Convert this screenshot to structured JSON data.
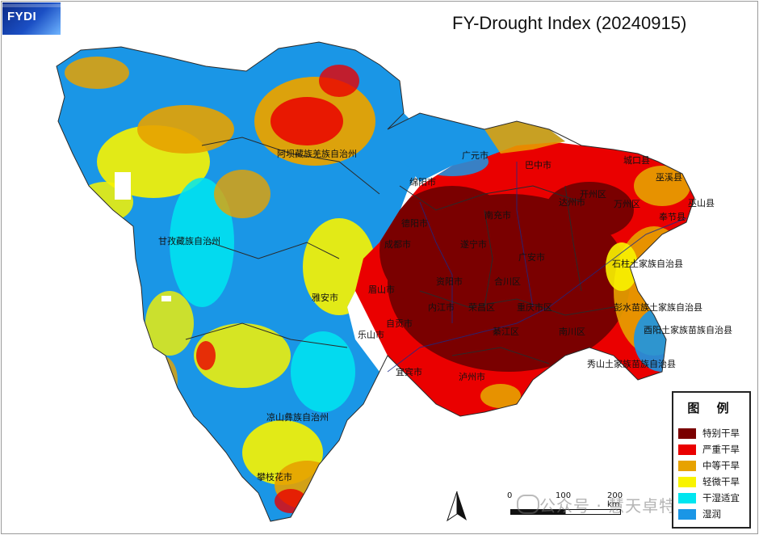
{
  "logo": {
    "text": "FYDI"
  },
  "title": "FY-Drought Index (20240915)",
  "colors": {
    "extreme": "#7a0000",
    "severe": "#ea0000",
    "moderate": "#e7a200",
    "light": "#f8f300",
    "suitable": "#00e6f0",
    "wet": "#1a96e6",
    "boundary": "#2a2a2a",
    "river": "#1a2a8a"
  },
  "places": [
    "阿坝藏族羌族自治州",
    "广元市",
    "巴中市",
    "绵阳市",
    "城口县",
    "巫溪县",
    "巫山县",
    "甘孜藏族自治州",
    "万州区",
    "开州区",
    "奉节县",
    "达州市",
    "德阳市",
    "遂宁市",
    "南充市",
    "资阳市",
    "眉山市",
    "成都市",
    "广安市",
    "雅安市",
    "内江市",
    "石柱土家族自治县",
    "乐山市",
    "自贡市",
    "彭水苗族土家族自治县",
    "南川区",
    "酉阳土家族苗族自治县",
    "宜宾市",
    "秀山土家族苗族自治县",
    "泸州市",
    "凉山彝族自治州",
    "攀枝花市",
    "荣昌区",
    "綦江区",
    "合川区",
    "重庆市区"
  ],
  "legend": {
    "title": "图 例",
    "items": [
      {
        "label": "特别干旱",
        "color": "#7a0000"
      },
      {
        "label": "严重干旱",
        "color": "#ea0000"
      },
      {
        "label": "中等干旱",
        "color": "#e7a200"
      },
      {
        "label": "轻微干旱",
        "color": "#f8f300"
      },
      {
        "label": "干湿适宜",
        "color": "#00e6f0"
      },
      {
        "label": "湿润",
        "color": "#1a96e6"
      }
    ]
  },
  "scale": {
    "labels": [
      "0",
      "100",
      "200 km"
    ]
  },
  "watermark": "公众号 · 慧天卓特"
}
